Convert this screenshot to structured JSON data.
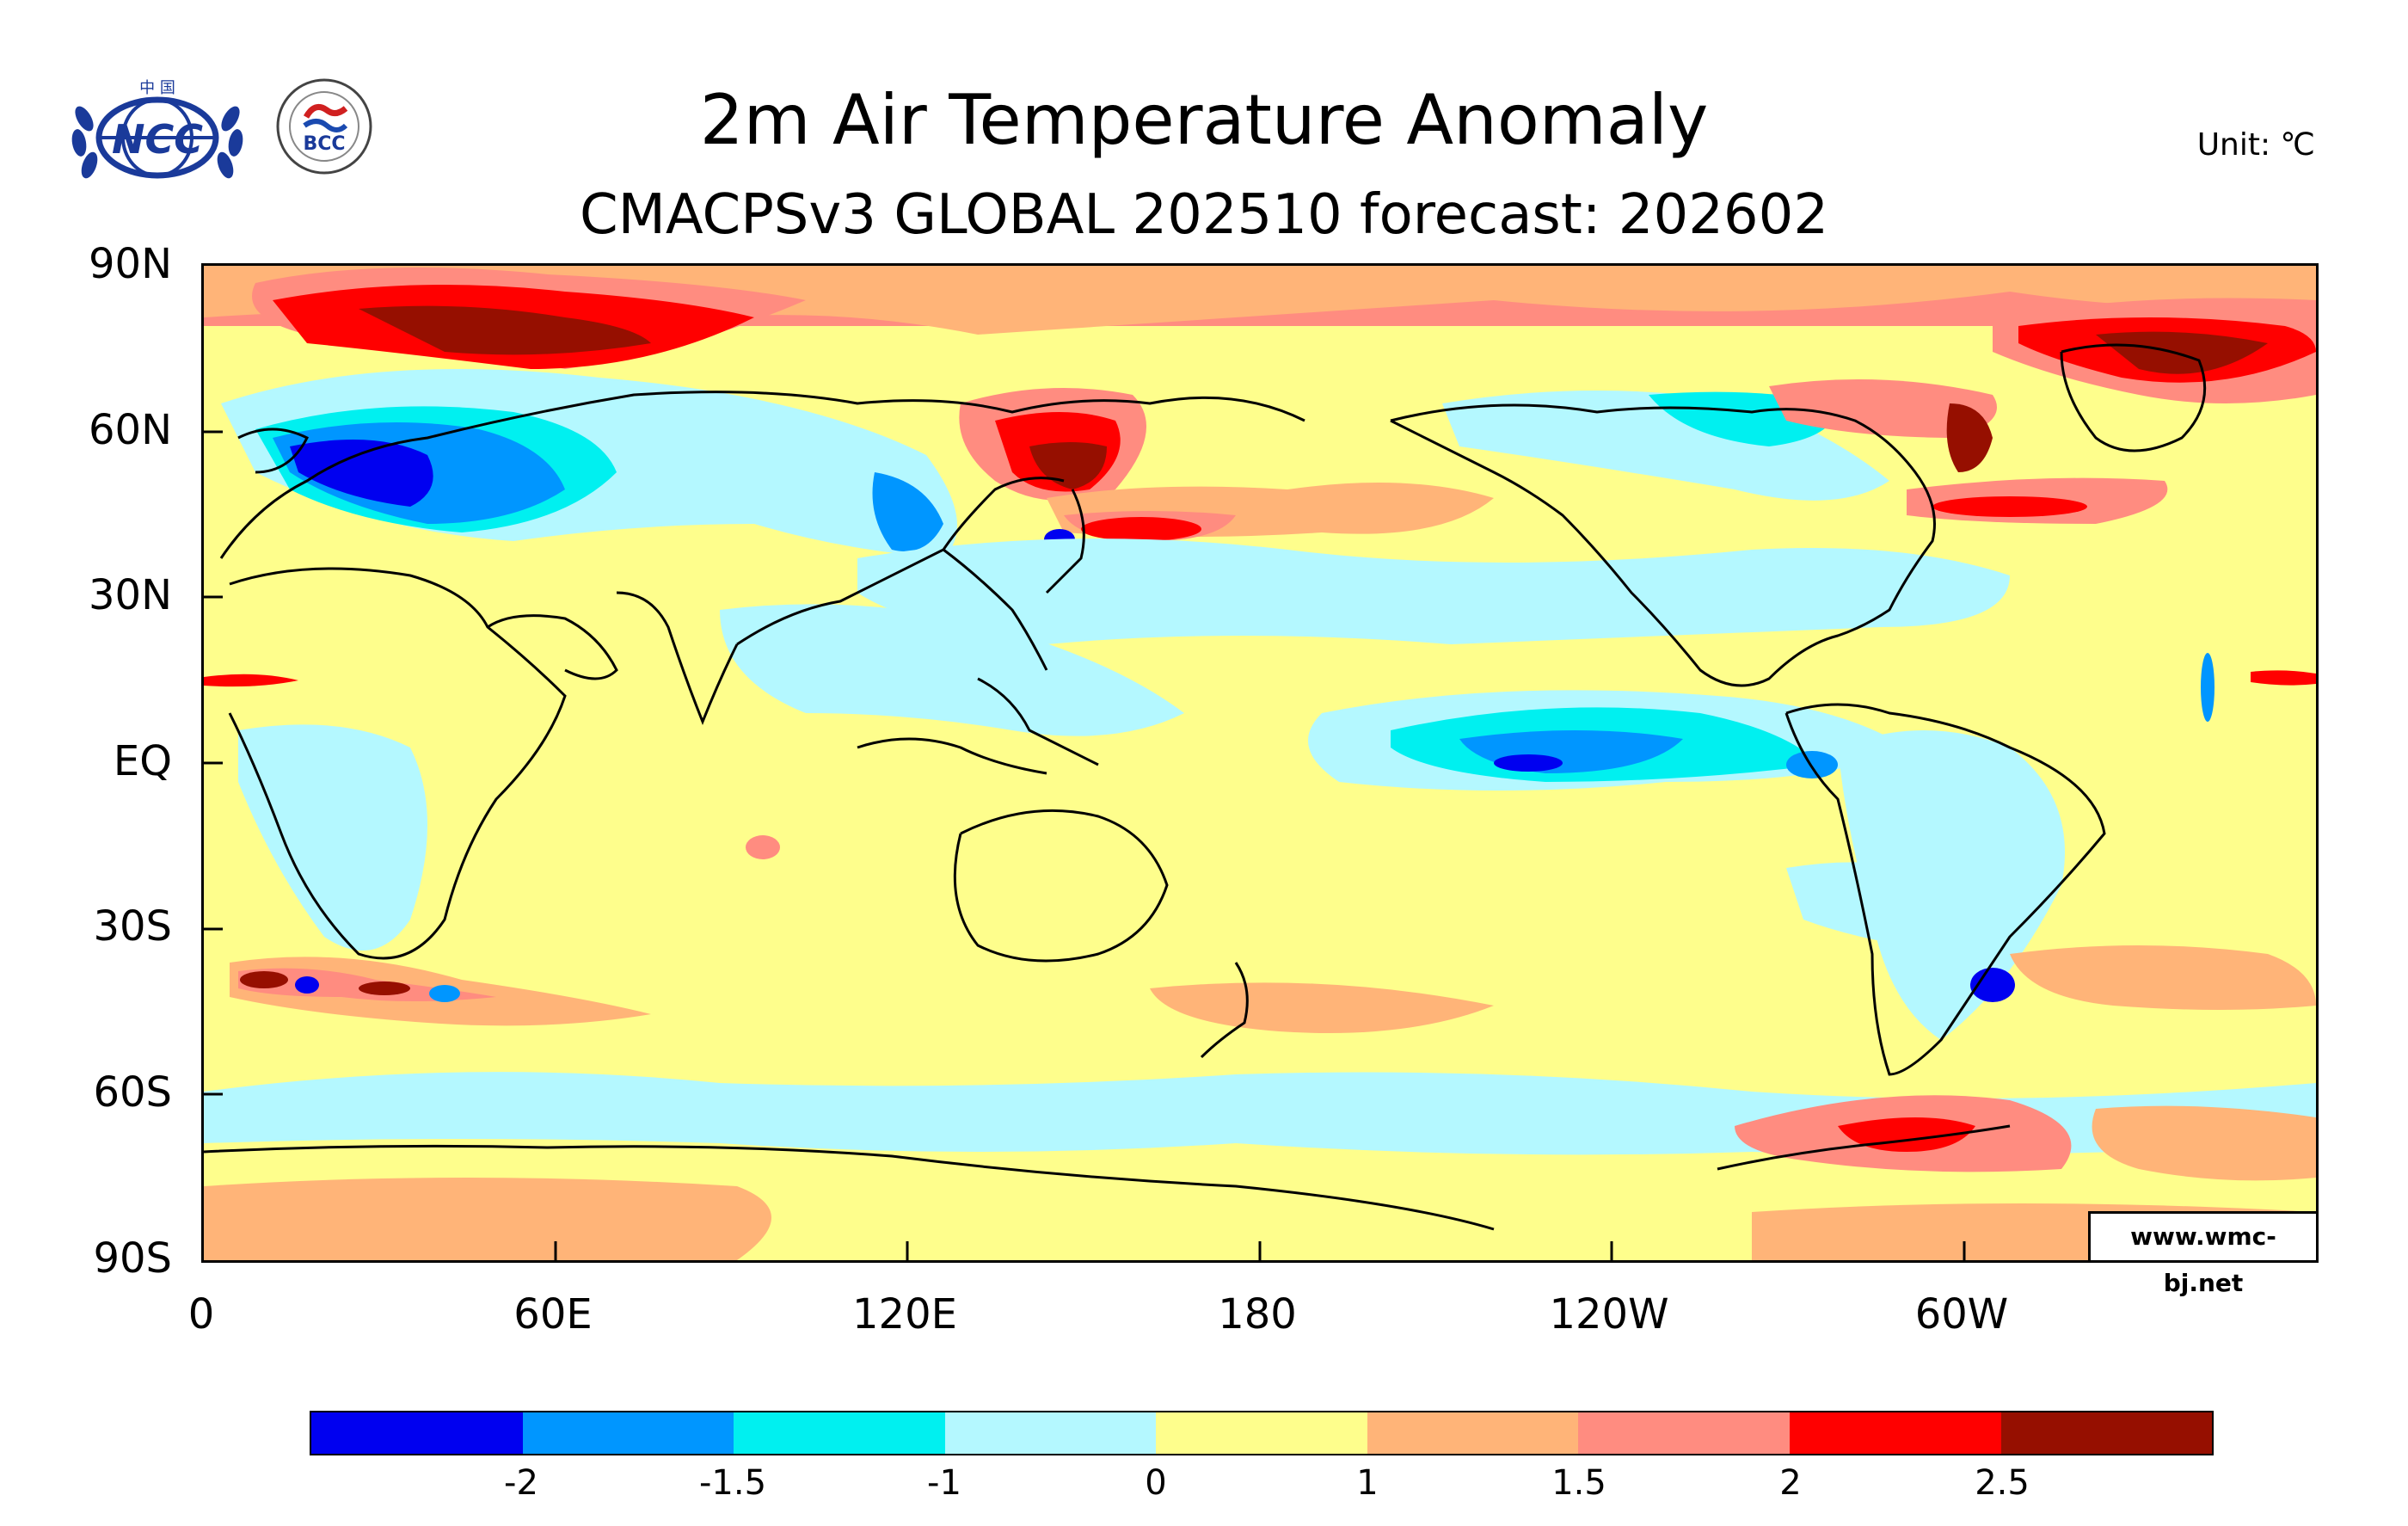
{
  "header": {
    "title": "2m Air Temperature Anomaly",
    "subtitle": "CMACPSv3 GLOBAL 202510 forecast: 202602",
    "unit": "Unit: ℃"
  },
  "logos": {
    "left_top_text": "中 国",
    "left": "NCC",
    "right": "BCC"
  },
  "credit": "www.wmc-bj.net",
  "map": {
    "projection": "cylindrical-equidistant",
    "lon_range": [
      0,
      360
    ],
    "lat_range": [
      -90,
      90
    ],
    "lat_labels": [
      "90N",
      "60N",
      "30N",
      "EQ",
      "30S",
      "60S",
      "90S"
    ],
    "lon_labels": [
      "0",
      "60E",
      "120E",
      "180",
      "120W",
      "60W"
    ]
  },
  "colorbar": {
    "colors": [
      "#0000f0",
      "#0096ff",
      "#00f0f0",
      "#b4f8ff",
      "#fefe8c",
      "#ffb478",
      "#ff8c80",
      "#ff0000",
      "#960f00"
    ],
    "labels": [
      "-2",
      "-1.5",
      "-1",
      "0",
      "1",
      "1.5",
      "2",
      "2.5"
    ]
  }
}
